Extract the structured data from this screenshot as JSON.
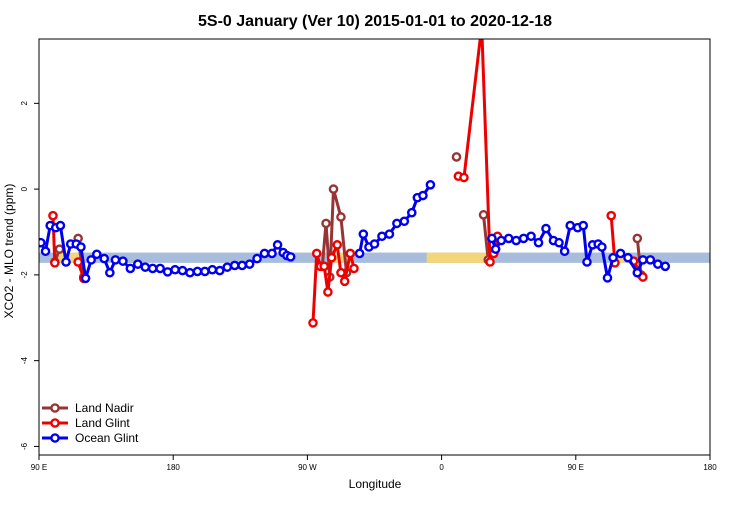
{
  "chart_data": {
    "type": "line",
    "title": "5S-0 January (Ver 10)   2015-01-01 to 2020-12-18",
    "xlabel": "Longitude",
    "ylabel": "XCO2 - MLO trend (ppm)",
    "xlim": [
      -90,
      270
    ],
    "ylim": [
      -6.2,
      3.5
    ],
    "x_ticks": [
      {
        "value": -90,
        "label": "90 E"
      },
      {
        "value": -18,
        "label": "180"
      },
      {
        "value": 54,
        "label": "90 W"
      },
      {
        "value": 126,
        "label": "0"
      },
      {
        "value": 198,
        "label": "90 E"
      },
      {
        "value": 270,
        "label": "180"
      }
    ],
    "y_ticks": [
      {
        "value": -6,
        "label": "-6"
      },
      {
        "value": -4,
        "label": "-4"
      },
      {
        "value": -2,
        "label": "-2"
      },
      {
        "value": 0,
        "label": "0"
      },
      {
        "value": 2,
        "label": "2"
      }
    ],
    "band": {
      "y_min": -1.72,
      "y_max": -1.48,
      "color": "#a7bddb",
      "land_color": "#f3d67c"
    },
    "land_spans": [
      [
        -82,
        -66
      ],
      [
        66,
        78
      ],
      [
        118,
        150
      ],
      [
        218,
        225
      ]
    ],
    "legend_position": "bottom-left",
    "series": [
      {
        "name": "Land Nadir",
        "color": "#973535",
        "segments": [
          [
            [
              -81.5,
              -1.7
            ],
            [
              -79,
              -1.4
            ]
          ],
          [
            [
              -69,
              -1.15
            ],
            [
              -66,
              -2.05
            ]
          ],
          [
            [
              62,
              -1.8
            ],
            [
              64,
              -0.8
            ],
            [
              66,
              -2.05
            ],
            [
              68,
              0.0
            ],
            [
              72,
              -0.65
            ],
            [
              75,
              -1.95
            ]
          ],
          [
            [
              134,
              0.75
            ]
          ],
          [
            [
              148.5,
              -0.6
            ],
            [
              151,
              -1.65
            ]
          ],
          [
            [
              231,
              -1.15
            ],
            [
              233,
              -2.0
            ]
          ]
        ]
      },
      {
        "name": "Land Glint",
        "color": "#ef0000",
        "segments": [
          [
            [
              -82.5,
              -0.62
            ],
            [
              -81.5,
              -1.72
            ]
          ],
          [
            [
              -69,
              -1.7
            ],
            [
              -66,
              -2.08
            ]
          ],
          [
            [
              57,
              -3.12
            ],
            [
              59,
              -1.5
            ],
            [
              61,
              -1.8
            ],
            [
              63,
              -1.8
            ],
            [
              65,
              -2.4
            ],
            [
              67,
              -1.6
            ],
            [
              70,
              -1.3
            ],
            [
              72,
              -1.95
            ],
            [
              74,
              -2.15
            ],
            [
              77,
              -1.5
            ],
            [
              79,
              -1.85
            ]
          ],
          [
            [
              135,
              0.3
            ],
            [
              138,
              0.27
            ],
            [
              147.5,
              3.8
            ],
            [
              152,
              -1.7
            ],
            [
              154,
              -1.5
            ],
            [
              156,
              -1.1
            ]
          ],
          [
            [
              217,
              -0.62
            ],
            [
              219,
              -1.72
            ]
          ],
          [
            [
              229,
              -1.68
            ],
            [
              234,
              -2.05
            ]
          ]
        ]
      },
      {
        "name": "Ocean Glint",
        "color": "#0000ee",
        "segments": [
          [
            [
              -89,
              -1.25
            ],
            [
              -86.5,
              -1.45
            ],
            [
              -84,
              -0.85
            ],
            [
              -81,
              -0.9
            ],
            [
              -78.5,
              -0.85
            ],
            [
              -75.5,
              -1.7
            ],
            [
              -73,
              -1.28
            ],
            [
              -70,
              -1.28
            ],
            [
              -67.5,
              -1.35
            ],
            [
              -65,
              -2.08
            ],
            [
              -62,
              -1.65
            ],
            [
              -59,
              -1.52
            ],
            [
              -55,
              -1.62
            ],
            [
              -52,
              -1.95
            ],
            [
              -49,
              -1.65
            ],
            [
              -45,
              -1.68
            ],
            [
              -41,
              -1.85
            ],
            [
              -37,
              -1.75
            ],
            [
              -33,
              -1.82
            ],
            [
              -29,
              -1.85
            ],
            [
              -25,
              -1.85
            ],
            [
              -21,
              -1.93
            ],
            [
              -17,
              -1.88
            ],
            [
              -13,
              -1.9
            ],
            [
              -9,
              -1.95
            ],
            [
              -5,
              -1.92
            ],
            [
              -1,
              -1.92
            ],
            [
              3,
              -1.88
            ],
            [
              7,
              -1.9
            ],
            [
              11,
              -1.82
            ],
            [
              15,
              -1.78
            ],
            [
              19,
              -1.78
            ],
            [
              23,
              -1.75
            ],
            [
              27,
              -1.62
            ],
            [
              31,
              -1.5
            ],
            [
              35,
              -1.5
            ],
            [
              38,
              -1.3
            ],
            [
              41,
              -1.48
            ],
            [
              43,
              -1.55
            ],
            [
              45,
              -1.58
            ]
          ],
          [
            [
              82,
              -1.5
            ],
            [
              84,
              -1.05
            ],
            [
              87,
              -1.35
            ],
            [
              90,
              -1.28
            ],
            [
              94,
              -1.1
            ],
            [
              98,
              -1.05
            ],
            [
              102,
              -0.8
            ],
            [
              106,
              -0.75
            ],
            [
              110,
              -0.55
            ],
            [
              113,
              -0.2
            ],
            [
              116,
              -0.15
            ],
            [
              120,
              0.1
            ]
          ],
          [
            [
              153,
              -1.15
            ],
            [
              155,
              -1.4
            ],
            [
              158,
              -1.2
            ],
            [
              162,
              -1.15
            ],
            [
              166,
              -1.2
            ],
            [
              170,
              -1.15
            ],
            [
              174,
              -1.1
            ],
            [
              178,
              -1.25
            ],
            [
              182,
              -0.92
            ],
            [
              186,
              -1.2
            ],
            [
              189,
              -1.25
            ],
            [
              192,
              -1.45
            ],
            [
              195,
              -0.85
            ],
            [
              199,
              -0.9
            ],
            [
              202,
              -0.85
            ],
            [
              204,
              -1.7
            ],
            [
              207,
              -1.3
            ],
            [
              210,
              -1.28
            ],
            [
              212,
              -1.35
            ],
            [
              215,
              -2.07
            ],
            [
              218,
              -1.6
            ],
            [
              222,
              -1.5
            ],
            [
              226,
              -1.6
            ],
            [
              231,
              -1.95
            ],
            [
              234,
              -1.65
            ],
            [
              238,
              -1.65
            ],
            [
              242,
              -1.75
            ],
            [
              246,
              -1.8
            ]
          ]
        ]
      }
    ]
  }
}
